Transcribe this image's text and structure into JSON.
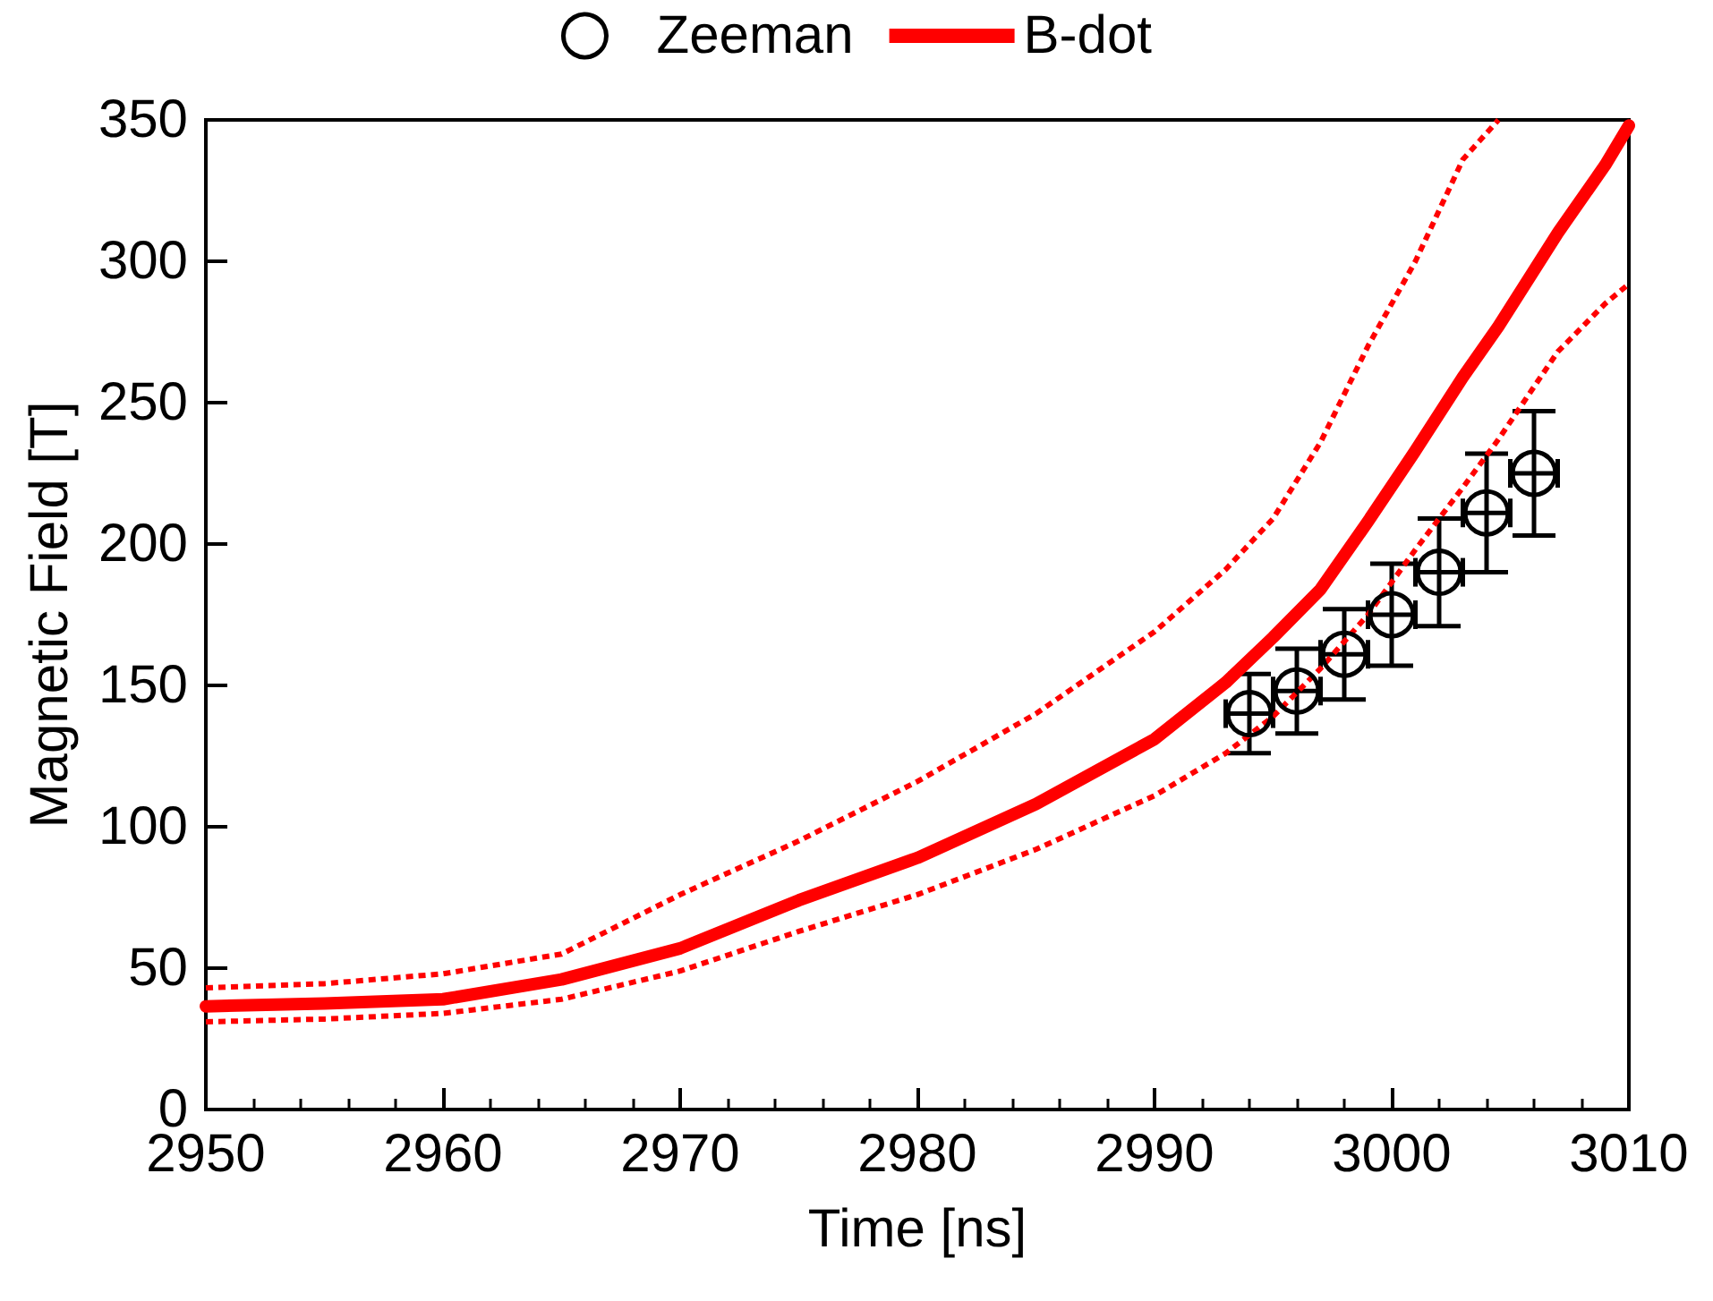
{
  "chart_data": {
    "type": "line",
    "xlabel": "Time [ns]",
    "ylabel": "Magnetic Field [T]",
    "xlim": [
      2950,
      3010
    ],
    "xticks": [
      2950,
      2960,
      2970,
      2980,
      2990,
      3000,
      3010
    ],
    "ylim": [
      0,
      350
    ],
    "yticks": [
      0,
      50,
      100,
      150,
      200,
      250,
      300,
      350
    ],
    "grid": false,
    "legend": "top",
    "series": [
      {
        "name": "Zeeman",
        "type": "scatter",
        "color": "#000000",
        "marker": "circle",
        "x": [
          2994,
          2996,
          2998,
          3000,
          3002,
          3004,
          3006
        ],
        "values": [
          140,
          148,
          161,
          175,
          190,
          211,
          225
        ],
        "errors": [
          14,
          15,
          16,
          18,
          19,
          21,
          22
        ],
        "xerrors": [
          1,
          1,
          1,
          1,
          1,
          1,
          1
        ]
      },
      {
        "name": "B-dot",
        "color": "#ff0000",
        "marker": "none",
        "line_style": "solid",
        "x": [
          2950,
          2955,
          2960,
          2965,
          2970,
          2975,
          2980,
          2985,
          2990,
          2993,
          2995,
          2997,
          2999,
          3001,
          3003,
          3004.5,
          3007,
          3009,
          3010
        ],
        "values": [
          36.5,
          37.5,
          39,
          46,
          57,
          74,
          89,
          108,
          131,
          151,
          167,
          184,
          208,
          233,
          259,
          277,
          310,
          334,
          348
        ]
      },
      {
        "color": "#ff0000",
        "marker": "none",
        "line_style": "dotted",
        "x": [
          2950,
          2955,
          2960,
          2965,
          2970,
          2975,
          2980,
          2985,
          2990,
          2993,
          2995,
          2997,
          2999,
          3001,
          3003,
          3004.5
        ],
        "values": [
          43,
          44.5,
          48,
          55,
          76,
          95,
          116,
          140,
          169,
          191,
          209,
          236,
          270,
          300,
          336,
          350
        ]
      },
      {
        "color": "#ff0000",
        "marker": "none",
        "line_style": "dotted",
        "x": [
          2950,
          2955,
          2960,
          2965,
          2970,
          2975,
          2980,
          2985,
          2990,
          2993,
          2995,
          2997,
          2999,
          3001,
          3003,
          3004.5,
          3007,
          3009,
          3010
        ],
        "values": [
          31,
          32,
          34,
          39,
          49,
          63,
          76,
          92,
          111,
          126,
          139,
          156,
          175,
          198,
          220,
          237,
          268,
          285,
          292
        ]
      }
    ]
  }
}
